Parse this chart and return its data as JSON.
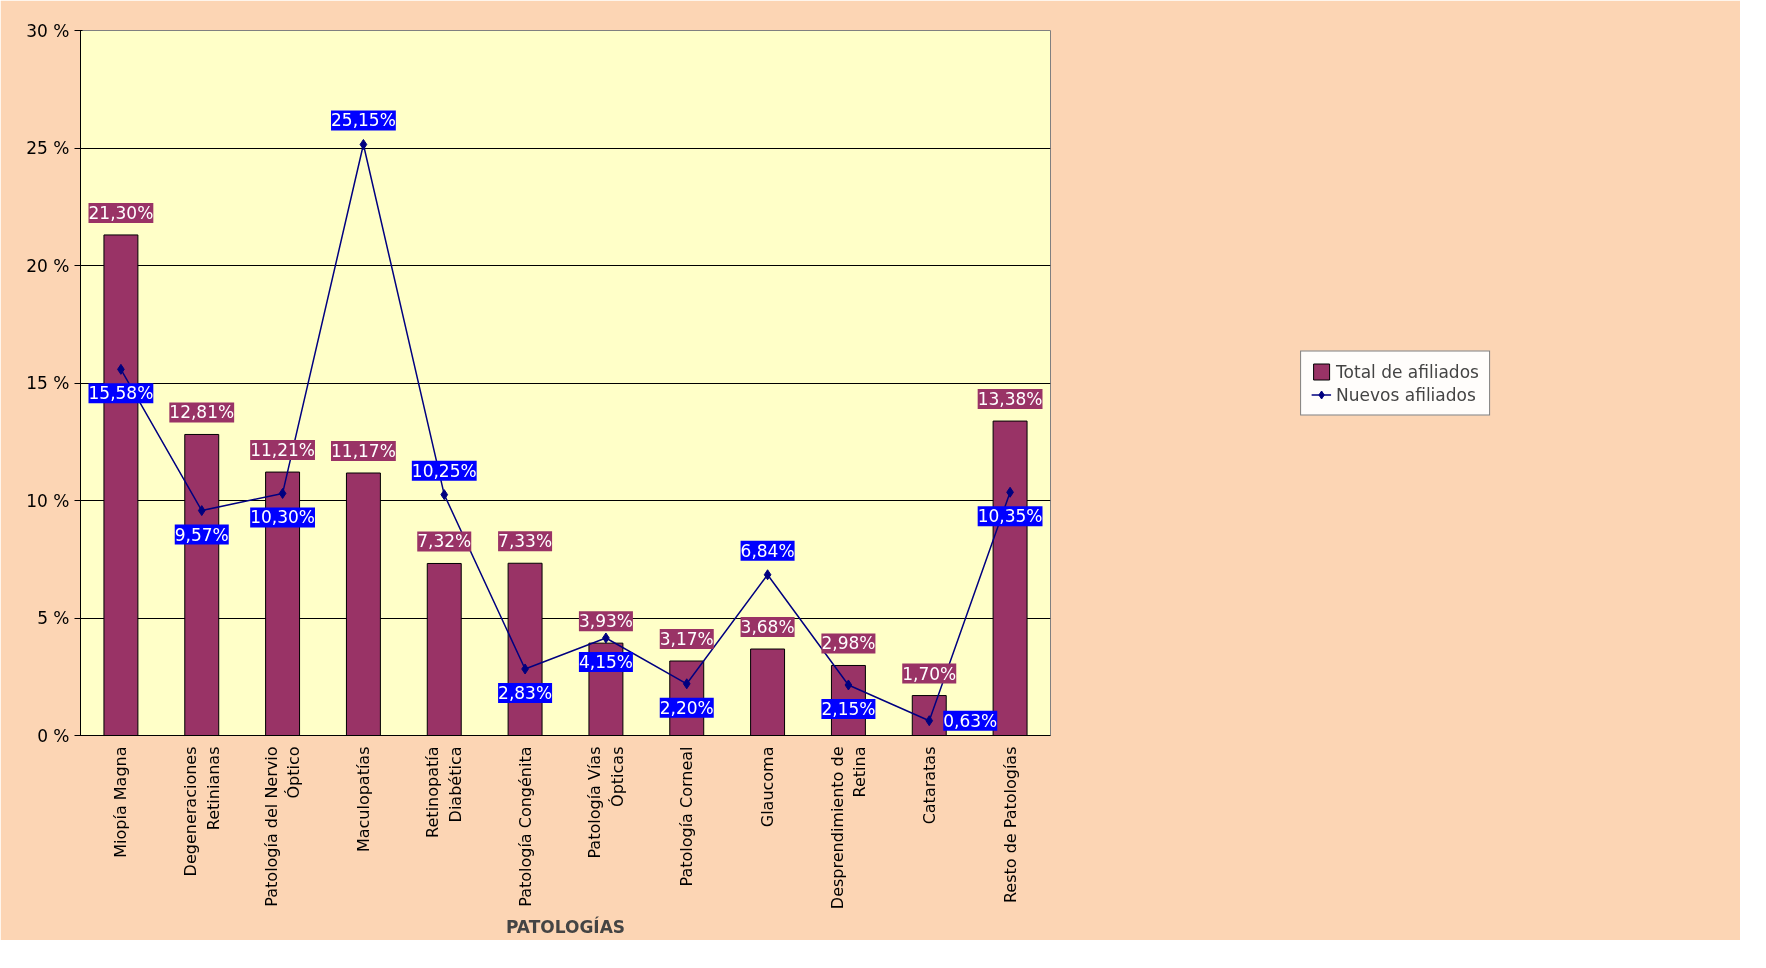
{
  "chart_data": {
    "type": "bar",
    "xlabel": "PATOLOGÍAS",
    "categories": [
      "Miopía Magna",
      "Degeneraciones\nRetinianas",
      "Patología del Nervio\nÓptico",
      "Maculopatías",
      "Retinopatía\nDiabética",
      "Patología Congénita",
      "Patología Vías\nÓpticas",
      "Patología Corneal",
      "Glaucoma",
      "Desprendimiento de\nRetina",
      "Cataratas",
      "Resto de Patologías"
    ],
    "series": [
      {
        "name": "Total de afiliados",
        "color": "#993366",
        "values": [
          21.3,
          12.81,
          11.21,
          11.17,
          7.32,
          7.33,
          3.93,
          3.17,
          3.68,
          2.98,
          1.7,
          13.38
        ],
        "value_labels": [
          "21,30%",
          "12,81%",
          "11,21%",
          "11,17%",
          "7,32%",
          "7,33%",
          "3,93%",
          "3,17%",
          "3,68%",
          "2,98%",
          "1,70%",
          "13,38%"
        ]
      },
      {
        "name": "Nuevos afiliados",
        "type": "line",
        "color": "#000080",
        "marker": "diamond",
        "values": [
          15.58,
          9.57,
          10.3,
          25.15,
          10.25,
          2.83,
          4.15,
          2.2,
          6.84,
          2.15,
          0.63,
          10.35
        ],
        "value_labels": [
          "15,58%",
          "9,57%",
          "10,30%",
          "25,15%",
          "10,25%",
          "2,83%",
          "4,15%",
          "2,20%",
          "6,84%",
          "2,15%",
          "0,63%",
          "10,35%"
        ]
      }
    ],
    "ylim": [
      0,
      30
    ],
    "yticks": [
      {
        "value": 0,
        "label": "0 %"
      },
      {
        "value": 5,
        "label": "5 %"
      },
      {
        "value": 10,
        "label": "10 %"
      },
      {
        "value": 15,
        "label": "15 %"
      },
      {
        "value": 20,
        "label": "20 %"
      },
      {
        "value": 25,
        "label": "25 %"
      },
      {
        "value": 30,
        "label": "30 %"
      }
    ],
    "grid": "y",
    "legend": "right"
  }
}
